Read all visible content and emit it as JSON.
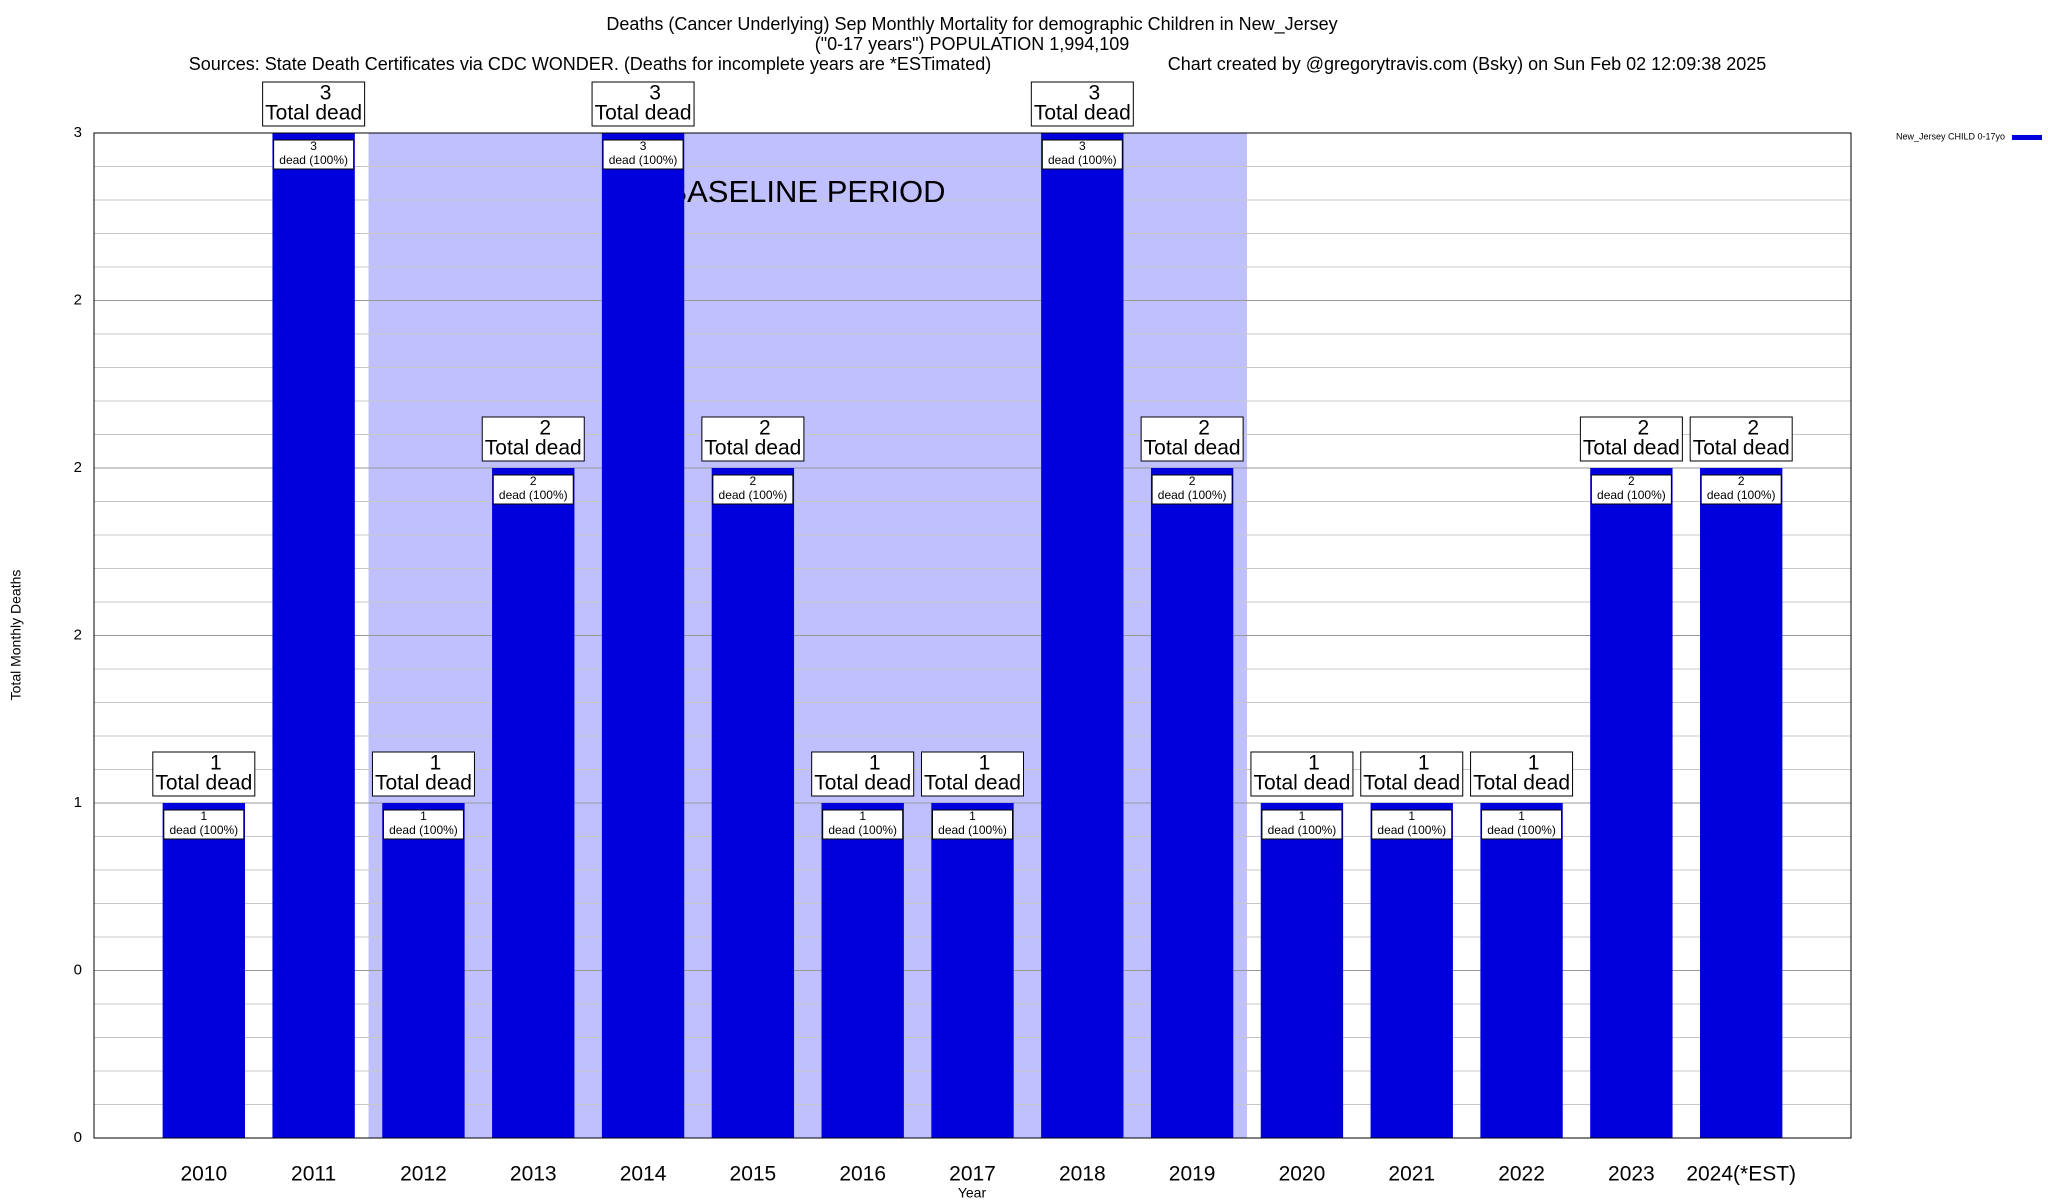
{
  "chart_data": {
    "type": "bar",
    "title": "Deaths (Cancer Underlying) Sep Monthly Mortality for demographic Children in New_Jersey",
    "subtitle": "(\"0-17 years\") POPULATION 1,994,109",
    "sources": "Sources: State Death Certificates via CDC WONDER. (Deaths for incomplete years are *ESTimated)",
    "credit": "Chart created by @gregorytravis.com (Bsky) on Sun Feb 02 12:09:38 2025",
    "x_label": "Year",
    "y_label": "Total Monthly Deaths",
    "categories": [
      "2010",
      "2011",
      "2012",
      "2013",
      "2014",
      "2015",
      "2016",
      "2017",
      "2018",
      "2019",
      "2020",
      "2021",
      "2022",
      "2023",
      "2024(*EST)"
    ],
    "series": [
      {
        "name": "New_Jersey CHILD 0-17yo",
        "color": "#0000dd",
        "values": [
          1,
          3,
          1,
          2,
          3,
          2,
          1,
          1,
          3,
          2,
          1,
          1,
          1,
          2,
          2
        ]
      }
    ],
    "total_label": "Total dead",
    "segment_label": "dead (100%)",
    "baseline": {
      "label": "BASELINE PERIOD",
      "span": [
        "2012",
        "2019"
      ],
      "color": "#c0c0ff"
    },
    "ylim": [
      0,
      3
    ],
    "yticks": [
      0,
      {
        "value": 0.5,
        "label": "0"
      },
      1,
      {
        "value": 1.5,
        "label": "2"
      },
      2,
      {
        "value": 2.5,
        "label": "2"
      },
      3
    ],
    "minor_yticks": [
      0.1,
      0.2,
      0.3,
      0.4,
      0.6,
      0.7,
      0.8,
      0.9,
      1.1,
      1.2,
      1.3,
      1.4,
      1.6,
      1.7,
      1.8,
      1.9,
      2.1,
      2.2,
      2.3,
      2.4,
      2.6,
      2.7,
      2.8,
      2.9
    ],
    "grid": true,
    "legend": "top-right"
  }
}
